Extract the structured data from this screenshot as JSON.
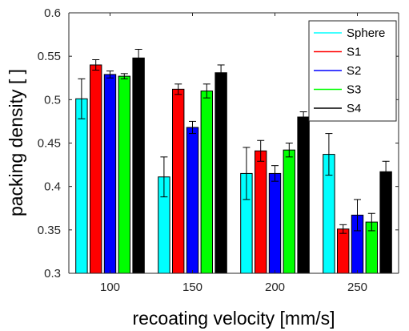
{
  "chart_data": {
    "type": "bar",
    "xlabel": "recoating velocity [mm/s]",
    "ylabel": "packing density [ ]",
    "categories": [
      "100",
      "150",
      "200",
      "250"
    ],
    "ylim": [
      0.3,
      0.6
    ],
    "yticks": [
      "0.3",
      "0.35",
      "0.4",
      "0.45",
      "0.5",
      "0.55",
      "0.6"
    ],
    "grid": false,
    "legend_position": "top-right",
    "error_bars": true,
    "series": [
      {
        "name": "Sphere",
        "color": "#00ffff",
        "values": [
          0.501,
          0.411,
          0.415,
          0.437
        ],
        "errors": [
          0.023,
          0.023,
          0.03,
          0.024
        ]
      },
      {
        "name": "S1",
        "color": "#ff0000",
        "values": [
          0.54,
          0.512,
          0.441,
          0.351
        ],
        "errors": [
          0.006,
          0.006,
          0.012,
          0.005
        ]
      },
      {
        "name": "S2",
        "color": "#0000ff",
        "values": [
          0.529,
          0.468,
          0.415,
          0.367
        ],
        "errors": [
          0.004,
          0.007,
          0.009,
          0.018
        ]
      },
      {
        "name": "S3",
        "color": "#00ff00",
        "values": [
          0.527,
          0.51,
          0.442,
          0.359
        ],
        "errors": [
          0.003,
          0.008,
          0.008,
          0.01
        ]
      },
      {
        "name": "S4",
        "color": "#000000",
        "values": [
          0.548,
          0.531,
          0.48,
          0.417
        ],
        "errors": [
          0.01,
          0.009,
          0.006,
          0.012
        ]
      }
    ]
  }
}
